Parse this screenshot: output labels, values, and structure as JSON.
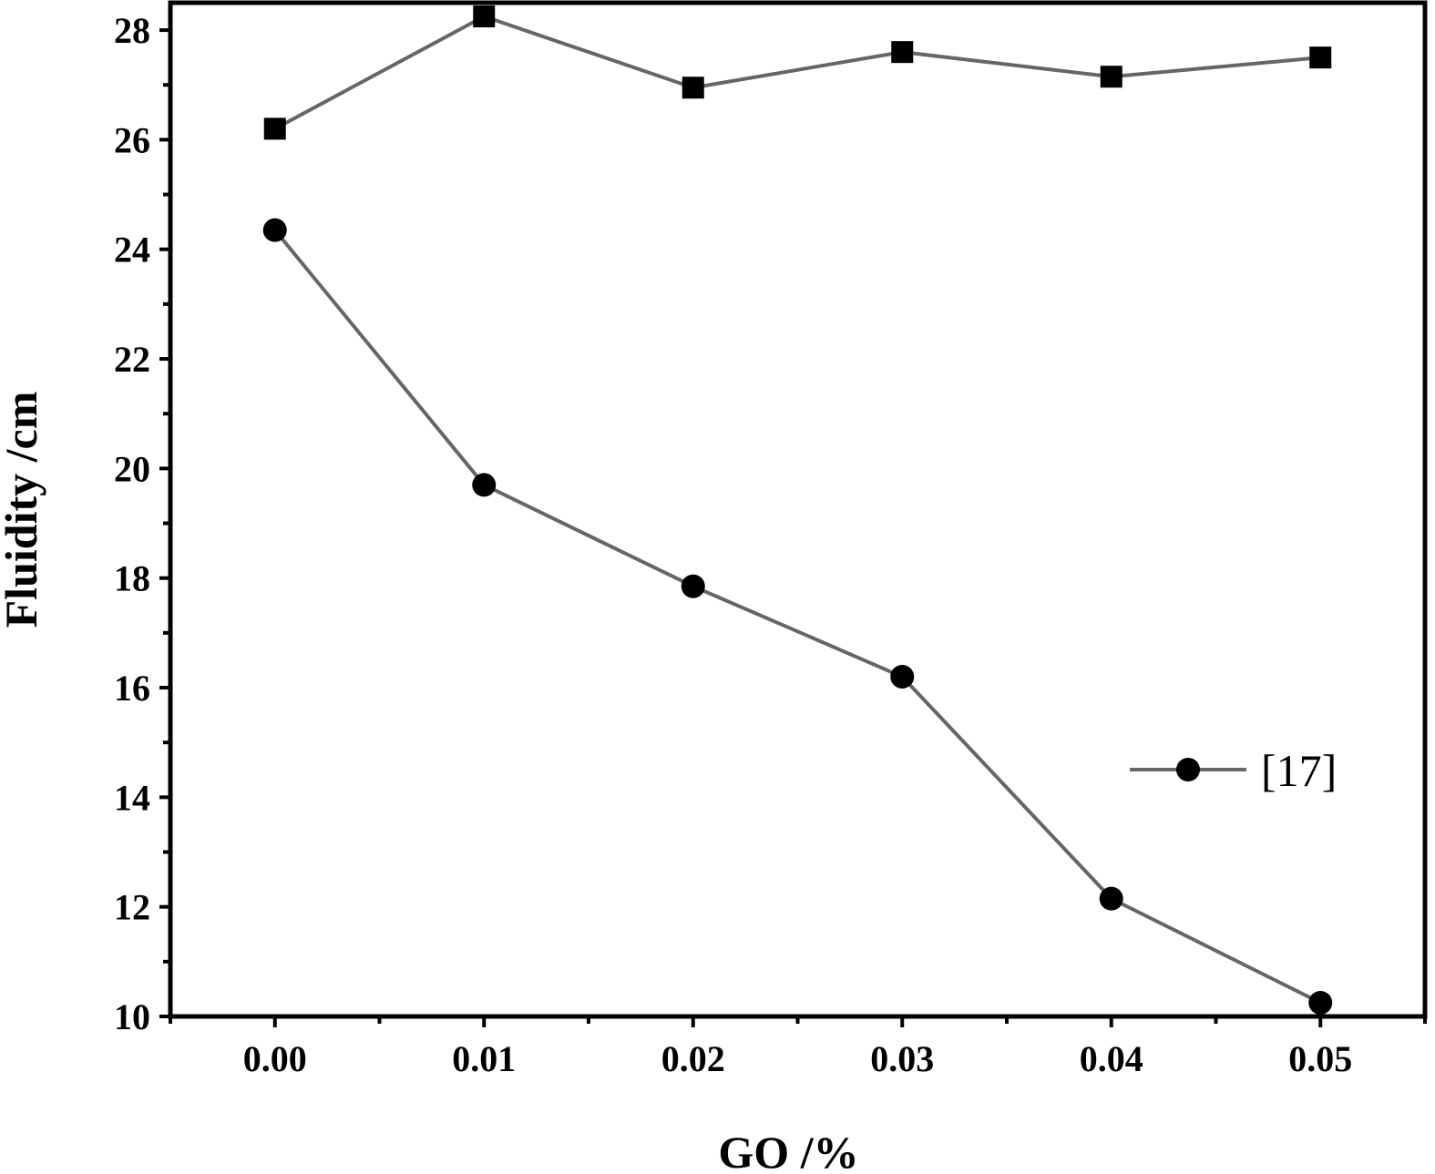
{
  "chart_data": {
    "type": "line",
    "xlabel": "GO /%",
    "ylabel": "Fluidity /cm",
    "xlim": [
      -0.005,
      0.055
    ],
    "ylim": [
      10,
      28.5
    ],
    "x_ticks": [
      "0.00",
      "0.01",
      "0.02",
      "0.03",
      "0.04",
      "0.05"
    ],
    "x_tick_values": [
      0.0,
      0.01,
      0.02,
      0.03,
      0.04,
      0.05
    ],
    "y_ticks": [
      "10",
      "12",
      "14",
      "16",
      "18",
      "20",
      "22",
      "24",
      "26",
      "28"
    ],
    "y_tick_values": [
      10,
      12,
      14,
      16,
      18,
      20,
      22,
      24,
      26,
      28
    ],
    "grid": false,
    "legend_position": "center-right",
    "line_color": "#666666",
    "marker_color": "#000000",
    "series": [
      {
        "name": "",
        "marker": "square",
        "x": [
          0.0,
          0.01,
          0.02,
          0.03,
          0.04,
          0.05
        ],
        "values": [
          26.2,
          28.25,
          26.95,
          27.6,
          27.15,
          27.5
        ]
      },
      {
        "name": "[17]",
        "marker": "circle",
        "x": [
          0.0,
          0.01,
          0.02,
          0.03,
          0.04,
          0.05
        ],
        "values": [
          24.35,
          19.7,
          17.85,
          16.2,
          12.15,
          10.25
        ]
      }
    ]
  }
}
